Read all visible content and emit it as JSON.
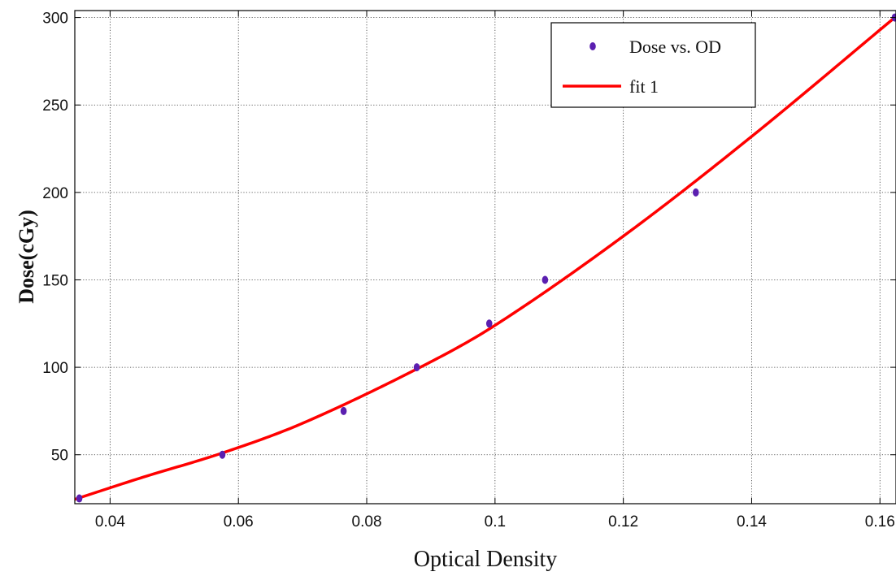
{
  "chart_data": {
    "type": "scatter",
    "xlabel": "Optical Density",
    "ylabel": "Dose(cGy)",
    "xlim": [
      0.0345,
      0.1625
    ],
    "ylim": [
      22,
      304
    ],
    "x_ticks": [
      0.04,
      0.06,
      0.08,
      0.1,
      0.12,
      0.14,
      0.16
    ],
    "x_tick_labels": [
      "0.04",
      "0.06",
      "0.08",
      "0.1",
      "0.12",
      "0.14",
      "0.16"
    ],
    "y_ticks": [
      50,
      100,
      150,
      200,
      250,
      300
    ],
    "y_tick_labels": [
      "50",
      "100",
      "150",
      "200",
      "250",
      "300"
    ],
    "grid": true,
    "legend_position": "top-right",
    "series": [
      {
        "name": "Dose vs. OD",
        "kind": "scatter",
        "color": "#5b1fb0",
        "x": [
          0.0352,
          0.0575,
          0.0764,
          0.0878,
          0.0991,
          0.1078,
          0.1313,
          0.1623
        ],
        "y": [
          25,
          50,
          75,
          100,
          125,
          150,
          200,
          300
        ]
      },
      {
        "name": "fit 1",
        "kind": "line",
        "color": "#ff0000",
        "x": [
          0.0345,
          0.045,
          0.0575,
          0.07,
          0.0878,
          0.1,
          0.12,
          0.14,
          0.1623
        ],
        "y": [
          24.5,
          37,
          51,
          68,
          99,
          124,
          175,
          232,
          300
        ]
      }
    ]
  }
}
